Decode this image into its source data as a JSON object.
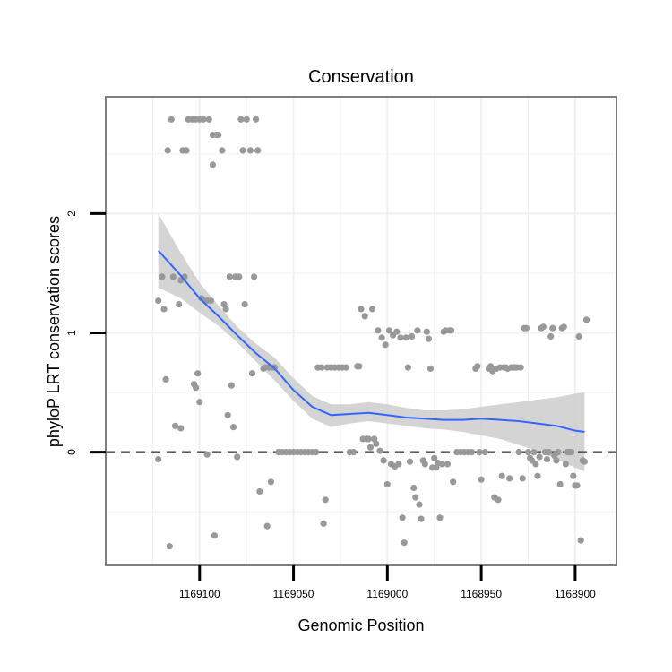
{
  "chart_data": {
    "type": "scatter",
    "title": "Conservation",
    "xlabel": "Genomic Position",
    "ylabel": "phyloP LRT conservation scores",
    "x_reversed": true,
    "xlim": [
      1169150,
      1168878
    ],
    "ylim": [
      -0.95,
      2.98
    ],
    "x_ticks": [
      1169100,
      1169050,
      1169000,
      1168950,
      1168900
    ],
    "x_tick_labels": [
      "1169100",
      "1169050",
      "1169000",
      "1168950",
      "1168900"
    ],
    "y_ticks": [
      0,
      1,
      2
    ],
    "y_tick_labels": [
      "0",
      "1",
      "2"
    ],
    "reference_line": {
      "y": 0,
      "style": "dashed"
    },
    "colors": {
      "points": "#999999",
      "smooth_line": "#3366FF",
      "confidence_band": "#CCCCCC",
      "panel_border": "#7f7f7f",
      "grid": "#f0f0f0"
    },
    "series": [
      {
        "name": "scores",
        "points": [
          [
            1169122,
            1.27
          ],
          [
            1169122,
            -0.06
          ],
          [
            1169120,
            1.47
          ],
          [
            1169119,
            1.2
          ],
          [
            1169118,
            0.61
          ],
          [
            1169117,
            2.53
          ],
          [
            1169116,
            -0.79
          ],
          [
            1169115,
            2.79
          ],
          [
            1169114,
            1.47
          ],
          [
            1169113,
            0.22
          ],
          [
            1169111,
            1.24
          ],
          [
            1169110,
            0.2
          ],
          [
            1169110,
            1.44
          ],
          [
            1169109,
            2.53
          ],
          [
            1169108,
            1.47
          ],
          [
            1169107,
            2.53
          ],
          [
            1169106,
            2.79
          ],
          [
            1169104,
            2.79
          ],
          [
            1169103,
            0.57
          ],
          [
            1169102,
            2.79
          ],
          [
            1169102,
            0.54
          ],
          [
            1169101,
            0.66
          ],
          [
            1169100,
            0.42
          ],
          [
            1169100,
            2.79
          ],
          [
            1169099,
            1.29
          ],
          [
            1169098,
            2.79
          ],
          [
            1169097,
            1.27
          ],
          [
            1169096,
            -0.02
          ],
          [
            1169096,
            1.27
          ],
          [
            1169095,
            2.79
          ],
          [
            1169094,
            1.27
          ],
          [
            1169093,
            2.41
          ],
          [
            1169093,
            2.66
          ],
          [
            1169092,
            -0.7
          ],
          [
            1169091,
            2.66
          ],
          [
            1169090,
            2.66
          ],
          [
            1169088,
            2.53
          ],
          [
            1169087,
            1.24
          ],
          [
            1169086,
            1.2
          ],
          [
            1169085,
            0.31
          ],
          [
            1169084,
            1.47
          ],
          [
            1169083,
            0.56
          ],
          [
            1169082,
            0.21
          ],
          [
            1169081,
            1.47
          ],
          [
            1169080,
            -0.04
          ],
          [
            1169079,
            1.47
          ],
          [
            1169078,
            2.79
          ],
          [
            1169077,
            2.53
          ],
          [
            1169076,
            1.24
          ],
          [
            1169075,
            2.79
          ],
          [
            1169073,
            2.53
          ],
          [
            1169072,
            0.66
          ],
          [
            1169071,
            1.47
          ],
          [
            1169070,
            2.79
          ],
          [
            1169069,
            2.53
          ],
          [
            1169068,
            -0.33
          ],
          [
            1169066,
            0.7
          ],
          [
            1169065,
            0.71
          ],
          [
            1169064,
            -0.62
          ],
          [
            1169063,
            0.71
          ],
          [
            1169062,
            -0.25
          ],
          [
            1169061,
            0.71
          ],
          [
            1169060,
            0.71
          ],
          [
            1169058,
            0
          ],
          [
            1169056,
            0
          ],
          [
            1169054,
            0
          ],
          [
            1169052,
            0
          ],
          [
            1169050,
            0
          ],
          [
            1169048,
            0
          ],
          [
            1169046,
            0
          ],
          [
            1169044,
            0
          ],
          [
            1169042,
            0
          ],
          [
            1169040,
            0
          ],
          [
            1169038,
            0
          ],
          [
            1169037,
            0.71
          ],
          [
            1169035,
            0.71
          ],
          [
            1169034,
            -0.6
          ],
          [
            1169033,
            -0.4
          ],
          [
            1169032,
            0.71
          ],
          [
            1169030,
            0.71
          ],
          [
            1169028,
            0.71
          ],
          [
            1169026,
            0.71
          ],
          [
            1169024,
            0.71
          ],
          [
            1169022,
            0.71
          ],
          [
            1169020,
            0
          ],
          [
            1169018,
            0
          ],
          [
            1169016,
            0.72
          ],
          [
            1169015,
            0.72
          ],
          [
            1169014,
            1.2
          ],
          [
            1169013,
            0.11
          ],
          [
            1169012,
            1.14
          ],
          [
            1169011,
            0.11
          ],
          [
            1169010,
            0.11
          ],
          [
            1169009,
            0.04
          ],
          [
            1169008,
            1.2
          ],
          [
            1169007,
            0.11
          ],
          [
            1169006,
            0.07
          ],
          [
            1169005,
            1.02
          ],
          [
            1169004,
            0.01
          ],
          [
            1169003,
            0.96
          ],
          [
            1169002,
            -0.07
          ],
          [
            1169001,
            0.9
          ],
          [
            1169000,
            -0.27
          ],
          [
            1168999,
            1.02
          ],
          [
            1168998,
            -0.1
          ],
          [
            1168997,
            0.98
          ],
          [
            1168996,
            -0.12
          ],
          [
            1168995,
            1.01
          ],
          [
            1168994,
            -0.1
          ],
          [
            1168993,
            0.96
          ],
          [
            1168992,
            -0.55
          ],
          [
            1168991,
            -0.76
          ],
          [
            1168990,
            0.96
          ],
          [
            1168989,
            0.71
          ],
          [
            1168988,
            -0.08
          ],
          [
            1168987,
            0.97
          ],
          [
            1168986,
            -0.3
          ],
          [
            1168985,
            -0.38
          ],
          [
            1168984,
            1.02
          ],
          [
            1168983,
            -0.44
          ],
          [
            1168982,
            -0.56
          ],
          [
            1168981,
            -0.07
          ],
          [
            1168980,
            -0.1
          ],
          [
            1168979,
            1.01
          ],
          [
            1168978,
            0.95
          ],
          [
            1168977,
            0.7
          ],
          [
            1168976,
            -0.13
          ],
          [
            1168975,
            -0.05
          ],
          [
            1168974,
            -0.13
          ],
          [
            1168973,
            -0.09
          ],
          [
            1168972,
            -0.55
          ],
          [
            1168971,
            -0.1
          ],
          [
            1168970,
            1.01
          ],
          [
            1168969,
            1.02
          ],
          [
            1168968,
            -0.1
          ],
          [
            1168967,
            1.02
          ],
          [
            1168966,
            1.02
          ],
          [
            1168965,
            -0.25
          ],
          [
            1168963,
            0
          ],
          [
            1168961,
            0
          ],
          [
            1168959,
            0
          ],
          [
            1168957,
            0
          ],
          [
            1168955,
            0
          ],
          [
            1168953,
            0.7
          ],
          [
            1168952,
            0.72
          ],
          [
            1168951,
            0
          ],
          [
            1168950,
            -0.23
          ],
          [
            1168948,
            0
          ],
          [
            1168946,
            0.7
          ],
          [
            1168945,
            0.72
          ],
          [
            1168944,
            0.68
          ],
          [
            1168943,
            -0.38
          ],
          [
            1168942,
            0.7
          ],
          [
            1168941,
            -0.4
          ],
          [
            1168940,
            0.71
          ],
          [
            1168939,
            -0.2
          ],
          [
            1168938,
            0.71
          ],
          [
            1168937,
            0.71
          ],
          [
            1168936,
            0.7
          ],
          [
            1168935,
            -0.22
          ],
          [
            1168934,
            0.71
          ],
          [
            1168933,
            0.71
          ],
          [
            1168932,
            0.71
          ],
          [
            1168931,
            0.71
          ],
          [
            1168930,
            0
          ],
          [
            1168929,
            0.71
          ],
          [
            1168928,
            -0.22
          ],
          [
            1168927,
            1.04
          ],
          [
            1168926,
            1.04
          ],
          [
            1168925,
            0
          ],
          [
            1168924,
            -0.05
          ],
          [
            1168923,
            -0.07
          ],
          [
            1168922,
            0
          ],
          [
            1168921,
            -0.1
          ],
          [
            1168920,
            -0.2
          ],
          [
            1168919,
            -0.04
          ],
          [
            1168918,
            1.04
          ],
          [
            1168917,
            1.05
          ],
          [
            1168916,
            0
          ],
          [
            1168915,
            -0.06
          ],
          [
            1168914,
            0
          ],
          [
            1168913,
            0.97
          ],
          [
            1168912,
            1.04
          ],
          [
            1168911,
            -0.03
          ],
          [
            1168910,
            -0.07
          ],
          [
            1168909,
            0
          ],
          [
            1168908,
            -0.27
          ],
          [
            1168907,
            1.04
          ],
          [
            1168906,
            1.05
          ],
          [
            1168905,
            -0.1
          ],
          [
            1168904,
            0
          ],
          [
            1168903,
            0
          ],
          [
            1168902,
            0
          ],
          [
            1168901,
            -0.2
          ],
          [
            1168900,
            -0.28
          ],
          [
            1168899,
            -0.28
          ],
          [
            1168898,
            0.97
          ],
          [
            1168897,
            -0.74
          ],
          [
            1168896,
            -0.07
          ],
          [
            1168895,
            -0.08
          ],
          [
            1168894,
            1.11
          ]
        ]
      },
      {
        "name": "smooth",
        "x": [
          1169122,
          1169110,
          1169100,
          1169090,
          1169080,
          1169070,
          1169060,
          1169050,
          1169040,
          1169030,
          1169020,
          1169010,
          1169000,
          1168990,
          1168980,
          1168970,
          1168960,
          1168950,
          1168940,
          1168930,
          1168920,
          1168910,
          1168900,
          1168895
        ],
        "y": [
          1.69,
          1.48,
          1.29,
          1.14,
          0.98,
          0.83,
          0.7,
          0.52,
          0.38,
          0.31,
          0.32,
          0.33,
          0.31,
          0.29,
          0.28,
          0.27,
          0.27,
          0.28,
          0.27,
          0.26,
          0.24,
          0.22,
          0.18,
          0.17
        ],
        "lower": [
          1.38,
          1.29,
          1.17,
          1.06,
          0.92,
          0.76,
          0.6,
          0.43,
          0.28,
          0.21,
          0.24,
          0.26,
          0.24,
          0.22,
          0.2,
          0.19,
          0.17,
          0.14,
          0.11,
          0.06,
          0.01,
          -0.06,
          -0.13,
          -0.16
        ],
        "upper": [
          2.0,
          1.67,
          1.42,
          1.23,
          1.05,
          0.91,
          0.79,
          0.62,
          0.47,
          0.4,
          0.4,
          0.42,
          0.4,
          0.37,
          0.35,
          0.35,
          0.36,
          0.38,
          0.4,
          0.42,
          0.44,
          0.46,
          0.49,
          0.5
        ]
      }
    ]
  }
}
